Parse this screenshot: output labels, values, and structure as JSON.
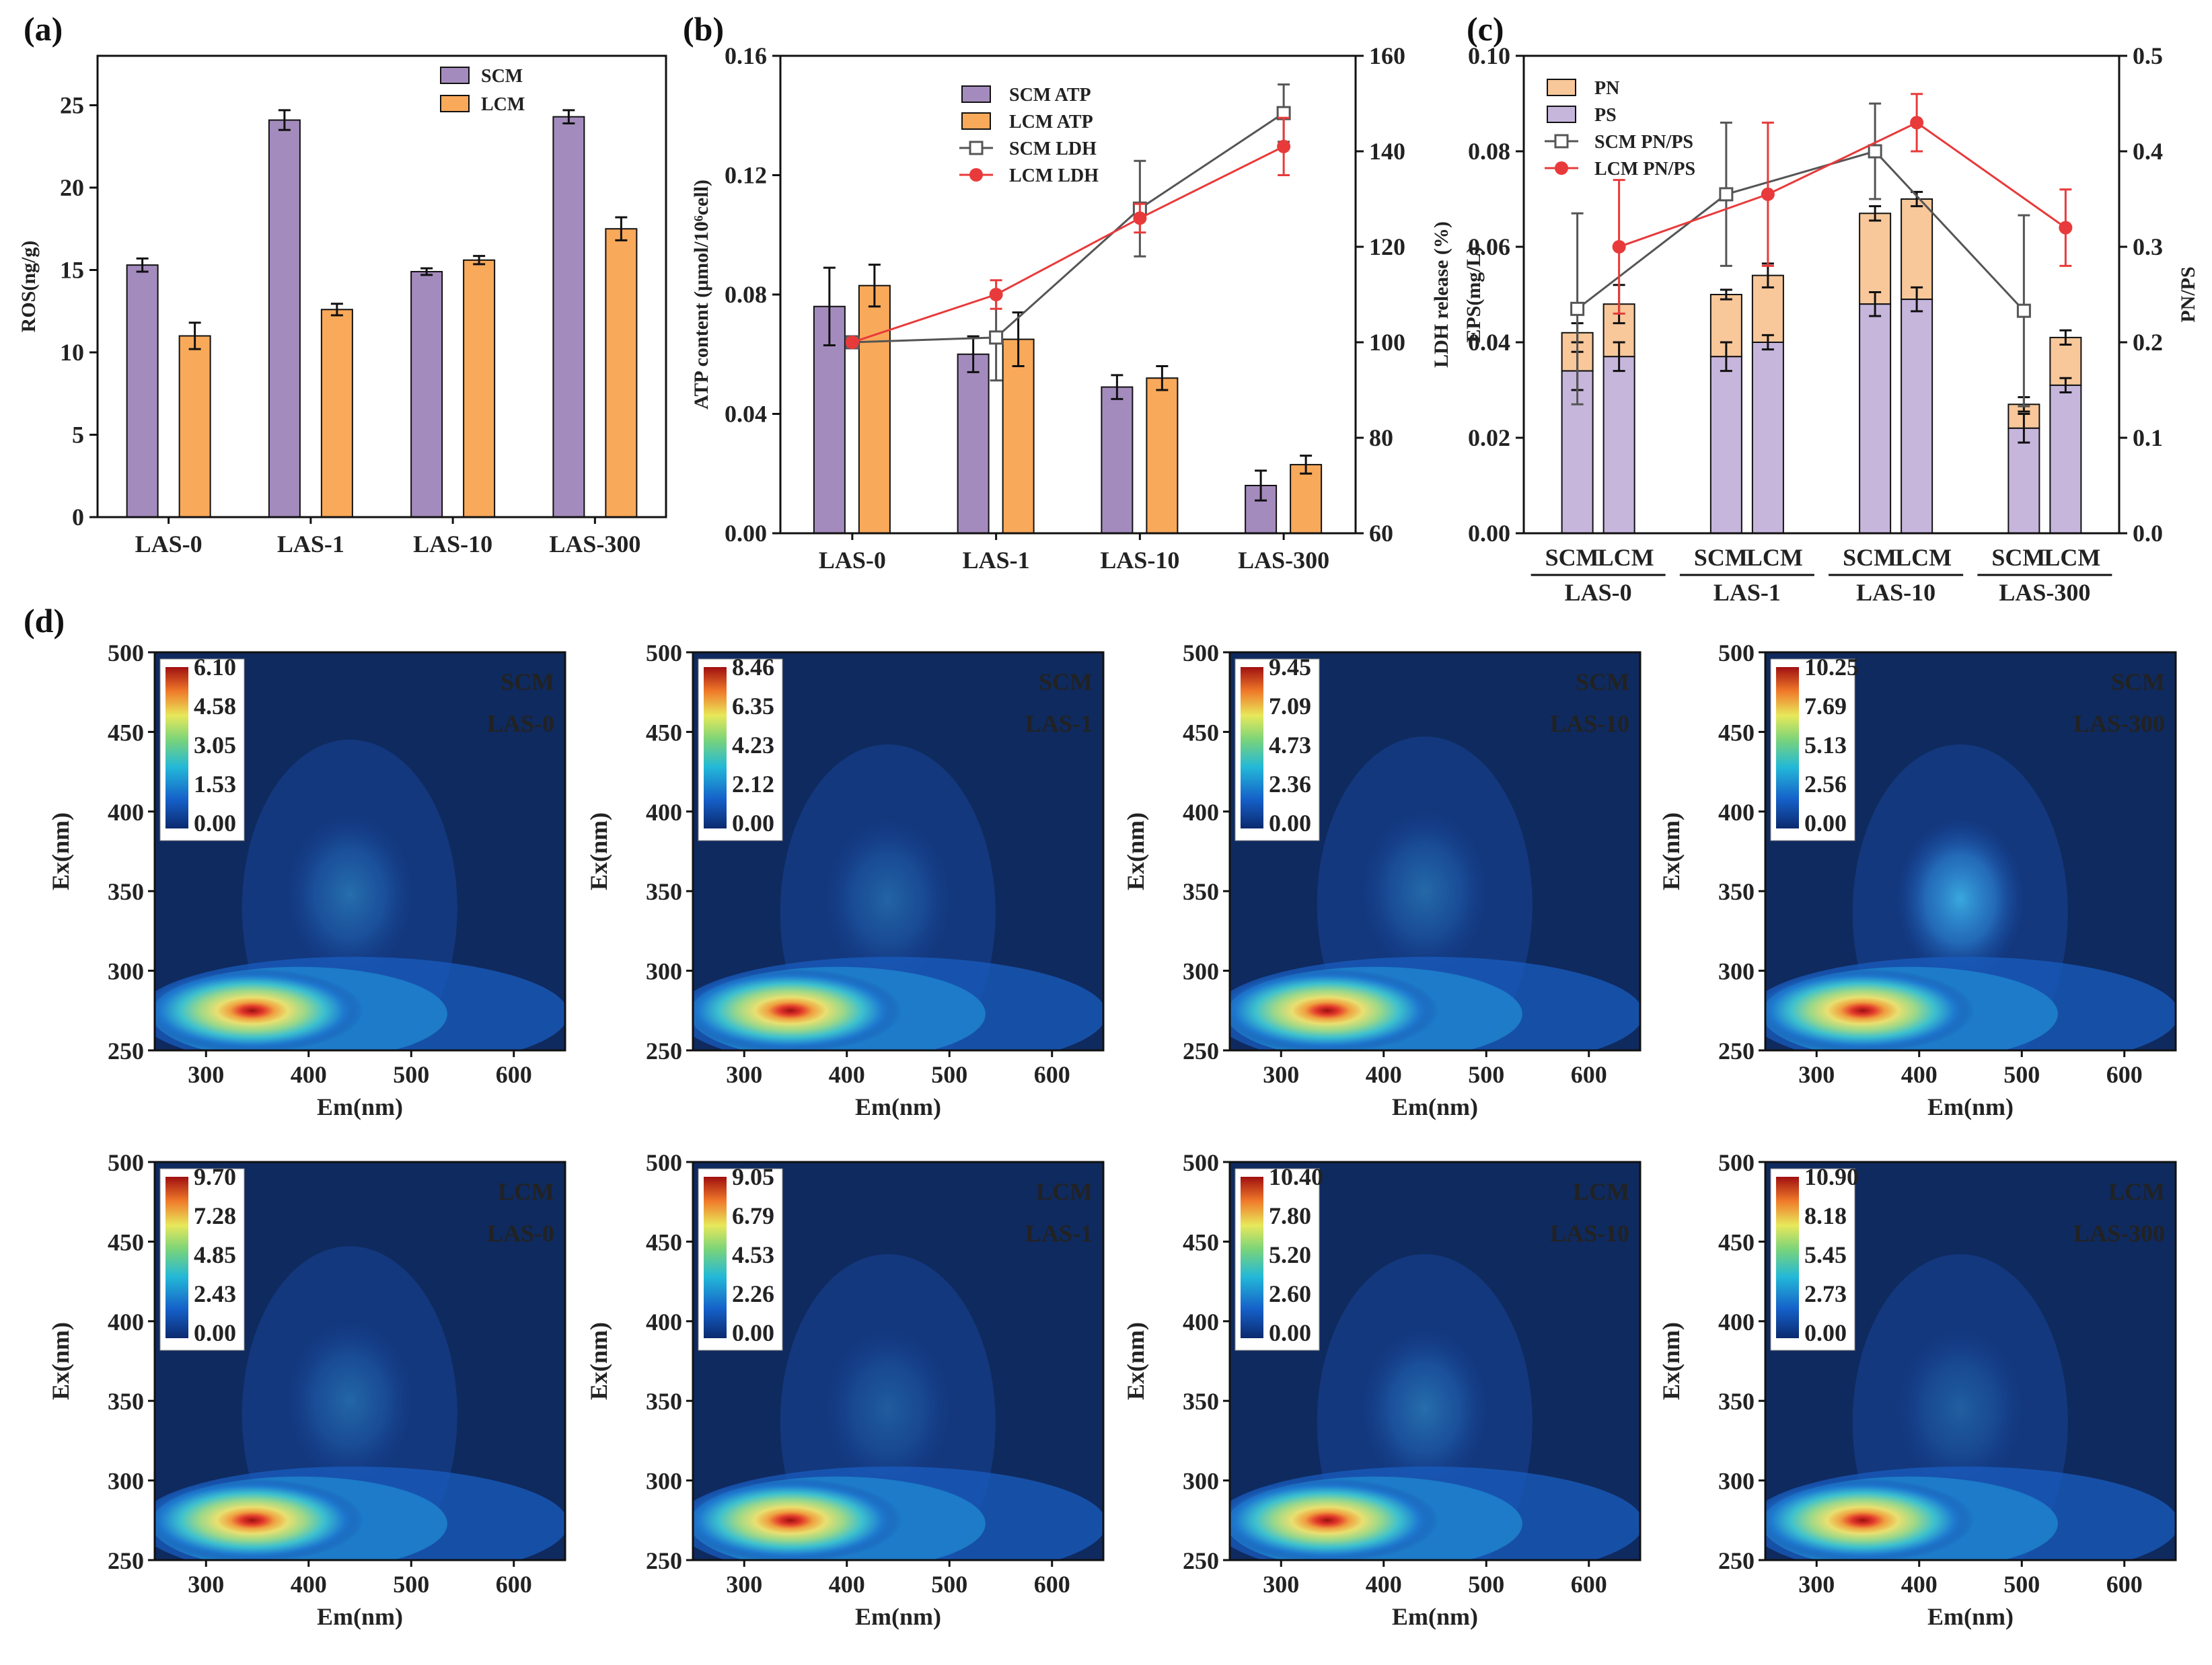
{
  "colors": {
    "scm": "#a48bbd",
    "lcm": "#f9a95a",
    "ps": "#c6b6dc",
    "pn": "#f8c79a",
    "scm_line": "#555555",
    "lcm_line": "#e83a3a",
    "eem_bg": "#0f2a5e"
  },
  "chart_data": [
    {
      "id": "a",
      "panel_label": "(a)",
      "type": "bar",
      "categories": [
        "LAS-0",
        "LAS-1",
        "LAS-10",
        "LAS-300"
      ],
      "ylabel": "ROS(ng/g)",
      "ylim": [
        0,
        28
      ],
      "yticks": [
        0,
        5,
        10,
        15,
        20,
        25
      ],
      "series": [
        {
          "name": "SCM",
          "color_key": "scm",
          "values": [
            15.3,
            24.1,
            14.9,
            24.3
          ],
          "errors": [
            0.4,
            0.6,
            0.2,
            0.4
          ]
        },
        {
          "name": "LCM",
          "color_key": "lcm",
          "values": [
            11.0,
            12.6,
            15.6,
            17.5
          ],
          "errors": [
            0.8,
            0.35,
            0.25,
            0.7
          ]
        }
      ],
      "legend_position": "top-right"
    },
    {
      "id": "b",
      "panel_label": "(b)",
      "type": "bar+line",
      "categories": [
        "LAS-0",
        "LAS-1",
        "LAS-10",
        "LAS-300"
      ],
      "ylabel": "ATP content (μmol/10⁶cell)",
      "ylim": [
        0,
        0.16
      ],
      "yticks": [
        "0.00",
        "0.04",
        "0.08",
        "0.12",
        "0.16"
      ],
      "y2label": "LDH release (%)",
      "y2lim": [
        60,
        160
      ],
      "y2ticks": [
        60,
        80,
        100,
        120,
        140,
        160
      ],
      "series": [
        {
          "name": "SCM ATP",
          "kind": "bar",
          "axis": "left",
          "color_key": "scm",
          "values": [
            0.076,
            0.06,
            0.049,
            0.016
          ],
          "errors": [
            0.013,
            0.006,
            0.004,
            0.005
          ]
        },
        {
          "name": "LCM ATP",
          "kind": "bar",
          "axis": "left",
          "color_key": "lcm",
          "values": [
            0.083,
            0.065,
            0.052,
            0.023
          ],
          "errors": [
            0.007,
            0.009,
            0.004,
            0.003
          ]
        },
        {
          "name": "SCM LDH",
          "kind": "line",
          "axis": "right",
          "marker": "square",
          "color_key": "scm_line",
          "values": [
            100,
            101,
            128,
            148
          ],
          "errors": [
            0,
            9,
            10,
            6
          ]
        },
        {
          "name": "LCM LDH",
          "kind": "line",
          "axis": "right",
          "marker": "circle",
          "color_key": "lcm_line",
          "values": [
            100,
            110,
            126,
            141
          ],
          "errors": [
            0,
            3,
            3,
            6
          ]
        }
      ],
      "legend_position": "top-center"
    },
    {
      "id": "c",
      "panel_label": "(c)",
      "type": "stacked bar+line",
      "groups": [
        "LAS-0",
        "LAS-1",
        "LAS-10",
        "LAS-300"
      ],
      "sub_labels": [
        "SCM",
        "LCM"
      ],
      "ylabel": "EPS(mg/L)",
      "ylim": [
        0,
        0.1
      ],
      "yticks": [
        "0.00",
        "0.02",
        "0.04",
        "0.06",
        "0.08",
        "0.10"
      ],
      "y2label": "PN/PS",
      "y2lim": [
        0,
        0.5
      ],
      "y2ticks": [
        "0.0",
        "0.1",
        "0.2",
        "0.3",
        "0.4",
        "0.5"
      ],
      "series": [
        {
          "name": "PN",
          "kind": "stack-top",
          "color_key": "pn",
          "totals": [
            0.042,
            0.048,
            0.05,
            0.054,
            0.067,
            0.07,
            0.027,
            0.041
          ],
          "errors": [
            0.002,
            0.004,
            0.001,
            0.0025,
            0.0015,
            0.0015,
            0.0015,
            0.0015
          ]
        },
        {
          "name": "PS",
          "kind": "stack-bottom",
          "color_key": "ps",
          "values": [
            0.034,
            0.037,
            0.037,
            0.04,
            0.048,
            0.049,
            0.022,
            0.031
          ],
          "errors": [
            0.004,
            0.003,
            0.003,
            0.0015,
            0.0025,
            0.0025,
            0.003,
            0.0015
          ]
        },
        {
          "name": "SCM PN/PS",
          "kind": "line",
          "marker": "square",
          "color_key": "scm_line",
          "values": [
            0.235,
            0.355,
            0.4,
            0.233
          ],
          "errors": [
            0.1,
            0.075,
            0.05,
            0.1
          ]
        },
        {
          "name": "LCM PN/PS",
          "kind": "line",
          "marker": "circle",
          "color_key": "lcm_line",
          "values": [
            0.3,
            0.355,
            0.43,
            0.32
          ],
          "errors": [
            0.07,
            0.075,
            0.03,
            0.04
          ]
        }
      ],
      "legend_position": "top-left"
    },
    {
      "id": "d",
      "panel_label": "(d)",
      "type": "heatmap",
      "xlabel": "Em(nm)",
      "ylabel": "Ex(nm)",
      "xlim": [
        250,
        650
      ],
      "ylim": [
        250,
        500
      ],
      "xticks": [
        300,
        400,
        500,
        600
      ],
      "yticks": [
        250,
        300,
        350,
        400,
        450,
        500
      ],
      "panels": [
        {
          "title": [
            "SCM",
            "LAS-0"
          ],
          "colorbar": [
            "6.10",
            "4.58",
            "3.05",
            "1.53",
            "0.00"
          ],
          "max": 6.1,
          "peak_b": [
            440,
            348,
            0.22
          ]
        },
        {
          "title": [
            "SCM",
            "LAS-1"
          ],
          "colorbar": [
            "8.46",
            "6.35",
            "4.23",
            "2.12",
            "0.00"
          ],
          "max": 8.46,
          "peak_b": [
            440,
            345,
            0.18
          ]
        },
        {
          "title": [
            "SCM",
            "LAS-10"
          ],
          "colorbar": [
            "9.45",
            "7.09",
            "4.73",
            "2.36",
            "0.00"
          ],
          "max": 9.45,
          "peak_b": [
            440,
            350,
            0.2
          ]
        },
        {
          "title": [
            "SCM",
            "LAS-300"
          ],
          "colorbar": [
            "10.25",
            "7.69",
            "5.13",
            "2.56",
            "0.00"
          ],
          "max": 10.25,
          "peak_b": [
            440,
            345,
            0.45
          ]
        },
        {
          "title": [
            "LCM",
            "LAS-0"
          ],
          "colorbar": [
            "9.70",
            "7.28",
            "4.85",
            "2.43",
            "0.00"
          ],
          "max": 9.7,
          "peak_b": [
            440,
            350,
            0.19
          ]
        },
        {
          "title": [
            "LCM",
            "LAS-1"
          ],
          "colorbar": [
            "9.05",
            "6.79",
            "4.53",
            "2.26",
            "0.00"
          ],
          "max": 9.05,
          "peak_b": [
            440,
            345,
            0.15
          ]
        },
        {
          "title": [
            "LCM",
            "LAS-10"
          ],
          "colorbar": [
            "10.40",
            "7.80",
            "5.20",
            "2.60",
            "0.00"
          ],
          "max": 10.4,
          "peak_b": [
            440,
            345,
            0.22
          ]
        },
        {
          "title": [
            "LCM",
            "LAS-300"
          ],
          "colorbar": [
            "10.90",
            "8.18",
            "5.45",
            "2.73",
            "0.00"
          ],
          "max": 10.9,
          "peak_b": [
            440,
            345,
            0.16
          ]
        }
      ],
      "peak_a": {
        "em": 345,
        "ex": 275
      }
    }
  ]
}
